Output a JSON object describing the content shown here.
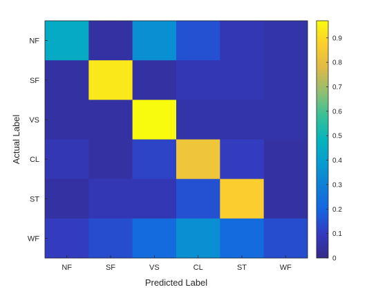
{
  "chart_data": {
    "type": "heatmap",
    "title": "",
    "xlabel": "Predicted Label",
    "ylabel": "Actual Label",
    "x_categories": [
      "NF",
      "SF",
      "VS",
      "CL",
      "ST",
      "WF"
    ],
    "y_categories": [
      "NF",
      "SF",
      "VS",
      "CL",
      "ST",
      "WF"
    ],
    "values": [
      [
        0.45,
        0.05,
        0.35,
        0.15,
        0.08,
        0.06
      ],
      [
        0.05,
        0.93,
        0.05,
        0.08,
        0.08,
        0.06
      ],
      [
        0.05,
        0.05,
        0.97,
        0.06,
        0.06,
        0.06
      ],
      [
        0.08,
        0.05,
        0.12,
        0.83,
        0.1,
        0.05
      ],
      [
        0.05,
        0.08,
        0.08,
        0.15,
        0.87,
        0.05
      ],
      [
        0.1,
        0.14,
        0.22,
        0.35,
        0.22,
        0.14
      ]
    ],
    "colorbar": {
      "colormap": "parula",
      "range": [
        0,
        0.97
      ],
      "ticks": [
        0,
        0.1,
        0.2,
        0.3,
        0.4,
        0.5,
        0.6,
        0.7,
        0.8,
        0.9
      ],
      "tick_labels": [
        "0",
        "0.1",
        "0.2",
        "0.3",
        "0.4",
        "0.5",
        "0.6",
        "0.7",
        "0.8",
        "0.9"
      ]
    }
  }
}
